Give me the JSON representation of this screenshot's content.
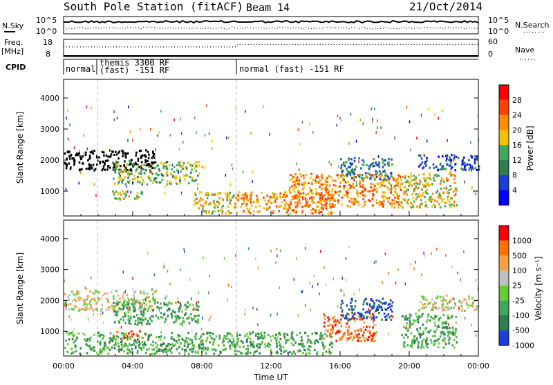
{
  "header": {
    "station": "South Pole Station (fitACF)",
    "beam": "Beam 14",
    "date": "21/Oct/2014"
  },
  "aux_panels": {
    "nsky_label": "N.Sky",
    "nsky_ticks": [
      "10^5",
      "10^0"
    ],
    "nsearch_label": "N.Search",
    "nsearch_ticks": [
      "10^5",
      "10^0"
    ],
    "freq_label": "Freq.",
    "freq_unit": "[MHz]",
    "freq_ticks": [
      "18",
      "8"
    ],
    "nave_label": "Nave",
    "nave_ticks": [
      "60",
      "0"
    ],
    "cpid_label": "CPID",
    "cpid_segments": [
      {
        "start_h": 0.0,
        "end_h": 1.67,
        "label": "normal"
      },
      {
        "start_h": 1.67,
        "end_h": 10.0,
        "label_line1": "themis 3300 RF",
        "label_line2": "(fast) -151 RF"
      },
      {
        "start_h": 10.0,
        "end_h": 24.0,
        "label": "normal (fast) -151 RF"
      }
    ]
  },
  "chart_data": [
    {
      "type": "heatmap",
      "name": "power",
      "ylabel": "Slant Range [km]",
      "xlabel": "",
      "xlim": [
        0,
        24
      ],
      "ylim": [
        200,
        4600
      ],
      "yticks": [
        "1000",
        "2000",
        "3000",
        "4000"
      ],
      "colorbar_label": "Power [dB]",
      "colorbar_ticks": [
        "4",
        "8",
        "12",
        "16",
        "20",
        "24",
        "28"
      ],
      "colors": [
        "#0000ff",
        "#1a3fd9",
        "#2d7d4f",
        "#3fa85a",
        "#f2c200",
        "#ff8c00",
        "#ff4000",
        "#ff0000"
      ],
      "scatter_regions": [
        {
          "t0": 0.0,
          "t1": 5.3,
          "r0": 1700,
          "r1": 2350,
          "level": 1.5
        },
        {
          "t0": 2.8,
          "t1": 7.8,
          "r0": 1250,
          "r1": 2000,
          "level": 3
        },
        {
          "t0": 2.8,
          "t1": 4.5,
          "r0": 750,
          "r1": 1050,
          "level": 4
        },
        {
          "t0": 7.5,
          "t1": 10.0,
          "r0": 300,
          "r1": 1000,
          "level": 4
        },
        {
          "t0": 9.9,
          "t1": 15.5,
          "r0": 300,
          "r1": 1000,
          "level": 5
        },
        {
          "t0": 13.0,
          "t1": 19.5,
          "r0": 500,
          "r1": 1600,
          "level": 5
        },
        {
          "t0": 16.0,
          "t1": 19.0,
          "r0": 1400,
          "r1": 2100,
          "level": 2
        },
        {
          "t0": 19.5,
          "t1": 22.7,
          "r0": 500,
          "r1": 1600,
          "level": 4
        },
        {
          "t0": 20.5,
          "t1": 24.0,
          "r0": 1700,
          "r1": 2200,
          "level": 1
        }
      ]
    },
    {
      "type": "heatmap",
      "name": "velocity",
      "ylabel": "Slant Range [km]",
      "xlabel": "Time UT",
      "xlim": [
        0,
        24
      ],
      "ylim": [
        200,
        4600
      ],
      "yticks": [
        "1000",
        "2000",
        "3000",
        "4000"
      ],
      "xticks": [
        "00:00",
        "04:00",
        "08:00",
        "12:00",
        "16:00",
        "20:00",
        "00:00"
      ],
      "colorbar_label": "Velocity [m s⁻¹]",
      "colorbar_ticks": [
        "1000",
        "500",
        "100",
        "25",
        "-25",
        "-100",
        "-500",
        "-1000"
      ],
      "colors": [
        "#1a3fd9",
        "#2d7d4f",
        "#3fa85a",
        "#66cc33",
        "#c0c0c0",
        "#ffa040",
        "#ff7000",
        "#ff0000"
      ],
      "scatter_regions": [
        {
          "t0": 0.0,
          "t1": 5.3,
          "r0": 1700,
          "r1": 2350,
          "level": 4
        },
        {
          "t0": 2.8,
          "t1": 7.8,
          "r0": 1250,
          "r1": 2000,
          "level": 2
        },
        {
          "t0": 2.8,
          "t1": 4.5,
          "r0": 750,
          "r1": 1050,
          "level": 6
        },
        {
          "t0": 0.0,
          "t1": 10.0,
          "r0": 300,
          "r1": 1000,
          "level": 2
        },
        {
          "t0": 9.9,
          "t1": 15.5,
          "r0": 300,
          "r1": 1000,
          "level": 2
        },
        {
          "t0": 15.0,
          "t1": 18.0,
          "r0": 700,
          "r1": 1600,
          "level": 6
        },
        {
          "t0": 16.0,
          "t1": 19.0,
          "r0": 1400,
          "r1": 2100,
          "level": 0
        },
        {
          "t0": 19.5,
          "t1": 22.7,
          "r0": 500,
          "r1": 1600,
          "level": 2
        },
        {
          "t0": 20.5,
          "t1": 24.0,
          "r0": 1700,
          "r1": 2200,
          "level": 4
        }
      ]
    }
  ]
}
